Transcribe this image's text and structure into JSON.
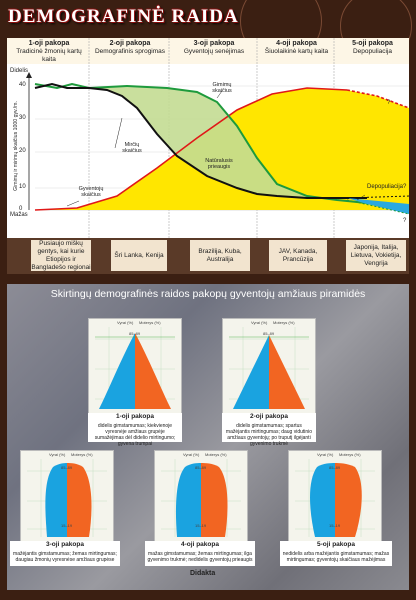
{
  "title": "DEMOGRAFINĖ RAIDA",
  "stages": [
    {
      "num": "1-oji pakopa",
      "name": "Tradicinė žmonių kartų kaita"
    },
    {
      "num": "2-oji pakopa",
      "name": "Demografinis sprogimas"
    },
    {
      "num": "3-oji pakopa",
      "name": "Gyventojų senėjimas"
    },
    {
      "num": "4-oji pakopa",
      "name": "Šiuolaikinė kartų kaita"
    },
    {
      "num": "5-oji pakopa",
      "name": "Depopuliacija"
    }
  ],
  "graph": {
    "y_axis_label": "Gimimų ir mirimų skaičius 1000 gyv./m.",
    "level_high": "Didelis",
    "level_low": "Mažas",
    "ticks": [
      "40",
      "30",
      "20",
      "10",
      "0"
    ],
    "labels": {
      "birth": "Gimimų skaičius",
      "death": "Mirčių skaičius",
      "natural_growth": "Natūralusis prieaugis",
      "population": "Gyventojų skaičius",
      "depop": "Depopuliacija?",
      "q1": "?",
      "q2": "?"
    },
    "colors": {
      "birth": "#1e9a3c",
      "death": "#111111",
      "population": "#e01818",
      "growth_fill": "#c3dc92",
      "pop_fill": "#ffe600",
      "depop": "#2aa9e0"
    }
  },
  "regions": [
    "Pusiaujo miškų gentys, kai kurie Etiopijos ir Bangladešo regionai",
    "Šri Lanka, Kenija",
    "Brazilija, Kuba, Australija",
    "JAV, Kanada, Prancūzija",
    "Japonija, Italija, Lietuva, Vokietija, Vengrija"
  ],
  "pyramids_title": "Skirtingų demografinės raidos pakopų gyventojų amžiaus piramidės",
  "pyramid_axis": {
    "men": "Vyrai (%)",
    "women": "Moterys (%)",
    "age_top": "85–89",
    "age_mid": "15–19"
  },
  "pyramids": [
    {
      "title": "1-oji pakopa",
      "text": "didelis gimstamumas; kiekvienoje vyresnėje amžiaus grupėje sumažėjimas dėl didelio mirtingumo; gyvena trumpai"
    },
    {
      "title": "2-oji pakopa",
      "text": "didelis gimstamumas; spartus mažėjantis mirtingumas; daug vidutinio amžiaus gyventojų; po truputį ilgėjanti gyvenimo trukmė"
    },
    {
      "title": "3-oji pakopa",
      "text": "mažėjantis gimstamumas; žemas mirtingumas; daugiau žmonių vyresnėse amžiaus grupėse"
    },
    {
      "title": "4-oji pakopa",
      "text": "mažas gimstamumas; žemas mirtingumas; ilga gyvenimo trukmė; nedidelis gyventojų prieaugis"
    },
    {
      "title": "5-oji pakopa",
      "text": "nedidelis arba mažėjantis gimstamumas; mažas mirtingumas; gyventojų skaičiaus mažėjimas"
    }
  ],
  "publisher": "Didakta",
  "colors": {
    "men": "#1aa3e0",
    "women": "#f26522",
    "chart_border": "#e0b84a"
  }
}
